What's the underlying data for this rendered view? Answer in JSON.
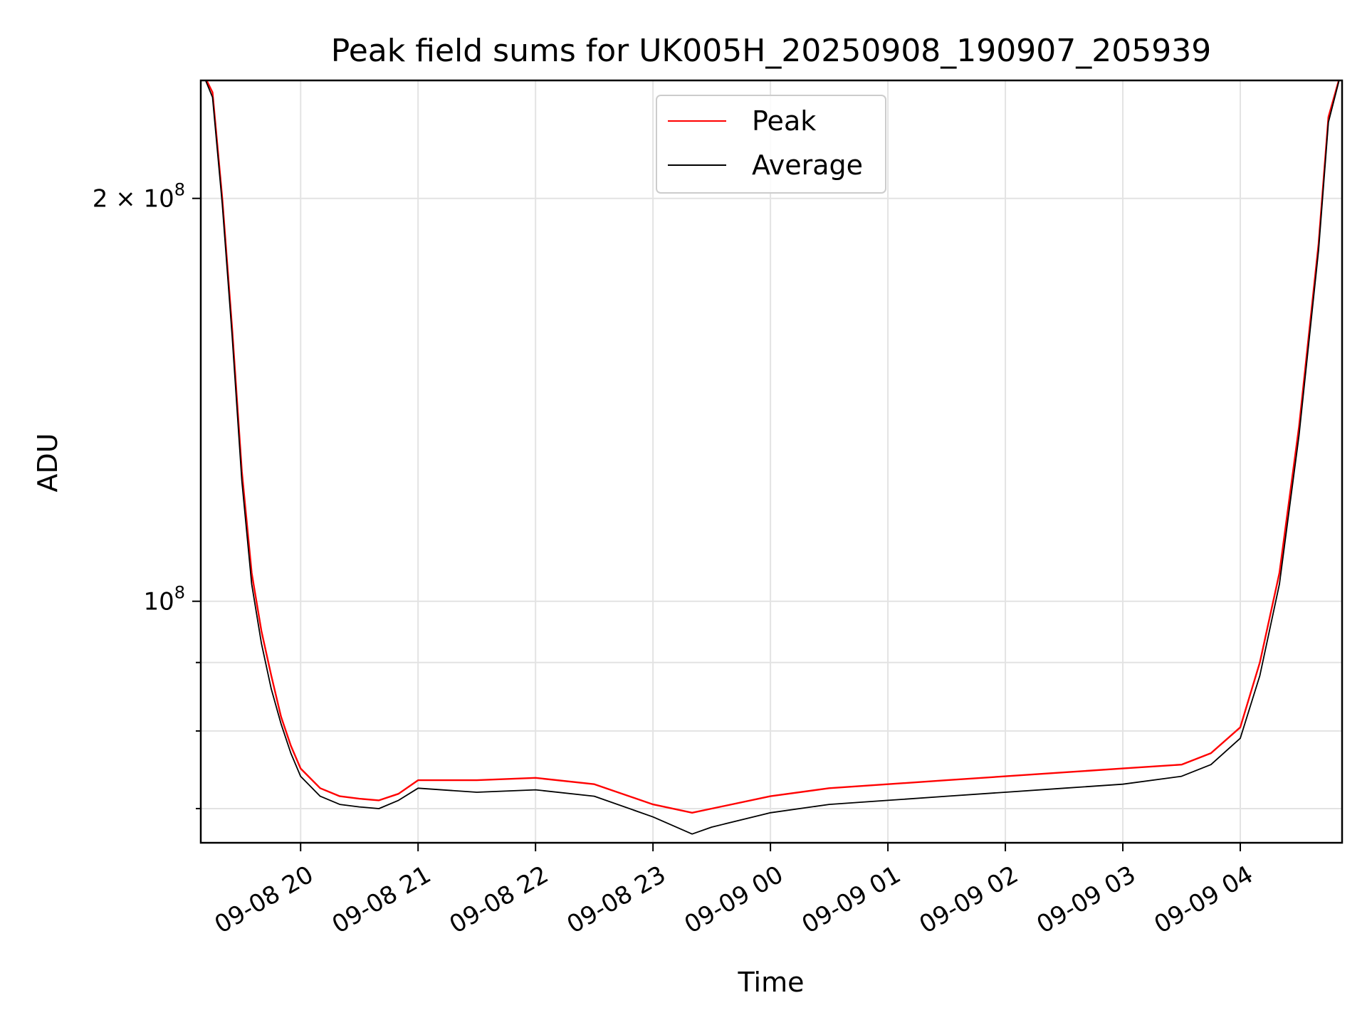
{
  "chart_data": {
    "type": "line",
    "title": "Peak field sums for UK005H_20250908_190907_205939",
    "xlabel": "Time",
    "ylabel": "ADU",
    "x_scale": "time",
    "y_scale": "log",
    "xlim": [
      "2025-09-08 19:09",
      "2025-09-09 04:52"
    ],
    "ylim": [
      66000000,
      245000000
    ],
    "grid": true,
    "legend_position": "upper center",
    "x_ticks": [
      {
        "value": "2025-09-08 20:00",
        "label": "09-08 20"
      },
      {
        "value": "2025-09-08 21:00",
        "label": "09-08 21"
      },
      {
        "value": "2025-09-08 22:00",
        "label": "09-08 22"
      },
      {
        "value": "2025-09-08 23:00",
        "label": "09-08 23"
      },
      {
        "value": "2025-09-09 00:00",
        "label": "09-09 00"
      },
      {
        "value": "2025-09-09 01:00",
        "label": "09-09 01"
      },
      {
        "value": "2025-09-09 02:00",
        "label": "09-09 02"
      },
      {
        "value": "2025-09-09 03:00",
        "label": "09-09 03"
      },
      {
        "value": "2025-09-09 04:00",
        "label": "09-09 04"
      }
    ],
    "y_ticks": [
      {
        "value": 200000000,
        "label_base": "2 × 10",
        "label_exp": "8"
      },
      {
        "value": 100000000,
        "label_base": "10",
        "label_exp": "8"
      }
    ],
    "y_minor_ticks": [
      70000000,
      80000000,
      90000000
    ],
    "series": [
      {
        "name": "Peak",
        "color": "#ff0000",
        "x": [
          "2025-09-08 19:09",
          "2025-09-08 19:15",
          "2025-09-08 19:20",
          "2025-09-08 19:25",
          "2025-09-08 19:30",
          "2025-09-08 19:35",
          "2025-09-08 19:40",
          "2025-09-08 19:45",
          "2025-09-08 19:50",
          "2025-09-08 19:55",
          "2025-09-08 20:00",
          "2025-09-08 20:10",
          "2025-09-08 20:20",
          "2025-09-08 20:30",
          "2025-09-08 20:40",
          "2025-09-08 20:50",
          "2025-09-08 21:00",
          "2025-09-08 21:30",
          "2025-09-08 22:00",
          "2025-09-08 22:30",
          "2025-09-08 23:00",
          "2025-09-08 23:20",
          "2025-09-08 23:30",
          "2025-09-09 00:00",
          "2025-09-09 00:30",
          "2025-09-09 01:00",
          "2025-09-09 01:30",
          "2025-09-09 02:00",
          "2025-09-09 02:30",
          "2025-09-09 03:00",
          "2025-09-09 03:30",
          "2025-09-09 03:45",
          "2025-09-09 04:00",
          "2025-09-09 04:10",
          "2025-09-09 04:20",
          "2025-09-09 04:30",
          "2025-09-09 04:40",
          "2025-09-09 04:45",
          "2025-09-09 04:52"
        ],
        "y": [
          250000000,
          240000000,
          200000000,
          160000000,
          125000000,
          105000000,
          95000000,
          88000000,
          82000000,
          78000000,
          75000000,
          72500000,
          71500000,
          71200000,
          71000000,
          71800000,
          73500000,
          73500000,
          73800000,
          73000000,
          70500000,
          69500000,
          70000000,
          71500000,
          72500000,
          73000000,
          73500000,
          74000000,
          74500000,
          75000000,
          75500000,
          77000000,
          80500000,
          90000000,
          105000000,
          135000000,
          185000000,
          230000000,
          250000000
        ]
      },
      {
        "name": "Average",
        "color": "#000000",
        "x": [
          "2025-09-08 19:09",
          "2025-09-08 19:15",
          "2025-09-08 19:20",
          "2025-09-08 19:25",
          "2025-09-08 19:30",
          "2025-09-08 19:35",
          "2025-09-08 19:40",
          "2025-09-08 19:45",
          "2025-09-08 19:50",
          "2025-09-08 19:55",
          "2025-09-08 20:00",
          "2025-09-08 20:10",
          "2025-09-08 20:20",
          "2025-09-08 20:30",
          "2025-09-08 20:40",
          "2025-09-08 20:50",
          "2025-09-08 21:00",
          "2025-09-08 21:30",
          "2025-09-08 22:00",
          "2025-09-08 22:30",
          "2025-09-08 23:00",
          "2025-09-08 23:20",
          "2025-09-08 23:30",
          "2025-09-09 00:00",
          "2025-09-09 00:30",
          "2025-09-09 01:00",
          "2025-09-09 01:30",
          "2025-09-09 02:00",
          "2025-09-09 02:30",
          "2025-09-09 03:00",
          "2025-09-09 03:30",
          "2025-09-09 03:45",
          "2025-09-09 04:00",
          "2025-09-09 04:10",
          "2025-09-09 04:20",
          "2025-09-09 04:30",
          "2025-09-09 04:40",
          "2025-09-09 04:45",
          "2025-09-09 04:52"
        ],
        "y": [
          250000000,
          238000000,
          198000000,
          158000000,
          123000000,
          103000000,
          93000000,
          86000000,
          81000000,
          77000000,
          74000000,
          71500000,
          70500000,
          70200000,
          70000000,
          71000000,
          72500000,
          72000000,
          72300000,
          71500000,
          69000000,
          67000000,
          67800000,
          69500000,
          70500000,
          71000000,
          71500000,
          72000000,
          72500000,
          73000000,
          74000000,
          75500000,
          79000000,
          88000000,
          103000000,
          133000000,
          183000000,
          228000000,
          250000000
        ]
      }
    ]
  }
}
